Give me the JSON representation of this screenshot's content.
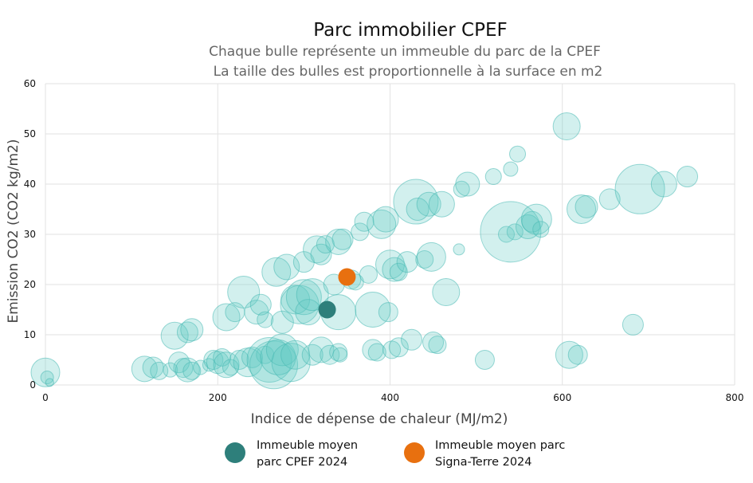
{
  "chart_data": {
    "type": "scatter",
    "title": "Parc immobilier CPEF",
    "subtitle": [
      "Chaque bulle représente un immeuble du parc de la CPEF",
      "La taille des bulles est proportionnelle à la surface en m2"
    ],
    "xlabel": "Indice de dépense de chaleur (MJ/m2)",
    "ylabel": "Emission CO2 (CO2 kg/m2)",
    "xlim": [
      0,
      800
    ],
    "ylim": [
      0,
      60
    ],
    "xticks": [
      0,
      200,
      400,
      600,
      800
    ],
    "yticks": [
      0,
      10,
      20,
      30,
      40,
      50,
      60
    ],
    "grid": true,
    "legend_position": "bottom",
    "colors": {
      "bubble_fill": "#5cc8c3",
      "bubble_stroke": "#47b8b2",
      "cpef_average": "#2e7f7b",
      "signa_terre_average": "#e8700f",
      "grid": "#e2e2e2"
    },
    "series": [
      {
        "role": "bubbles",
        "points": [
          [
            0,
            2.5,
            18
          ],
          [
            2,
            1.5,
            8
          ],
          [
            5,
            0.5,
            5
          ],
          [
            115,
            3.2,
            16
          ],
          [
            125,
            3.5,
            13
          ],
          [
            132,
            2.8,
            11
          ],
          [
            145,
            3.0,
            9
          ],
          [
            150,
            9.8,
            17
          ],
          [
            155,
            4.5,
            13
          ],
          [
            160,
            3.4,
            12
          ],
          [
            165,
            3.0,
            15
          ],
          [
            165,
            10.5,
            13
          ],
          [
            170,
            11.0,
            14
          ],
          [
            170,
            2.8,
            11
          ],
          [
            180,
            3.5,
            9
          ],
          [
            190,
            4.0,
            8
          ],
          [
            195,
            5.0,
            12
          ],
          [
            200,
            4.5,
            14
          ],
          [
            205,
            5.5,
            11
          ],
          [
            210,
            4.0,
            16
          ],
          [
            215,
            3.5,
            10
          ],
          [
            210,
            13.5,
            17
          ],
          [
            220,
            14.5,
            12
          ],
          [
            225,
            5.0,
            12
          ],
          [
            230,
            18.5,
            20
          ],
          [
            235,
            4.5,
            18
          ],
          [
            240,
            5.5,
            13
          ],
          [
            245,
            14.5,
            15
          ],
          [
            250,
            16.0,
            13
          ],
          [
            255,
            13.0,
            10
          ],
          [
            255,
            6.0,
            11
          ],
          [
            260,
            5.0,
            28
          ],
          [
            265,
            4.0,
            30
          ],
          [
            270,
            5.5,
            22
          ],
          [
            275,
            7.0,
            20
          ],
          [
            268,
            22.5,
            18
          ],
          [
            275,
            12.5,
            14
          ],
          [
            280,
            23.5,
            16
          ],
          [
            285,
            4.5,
            24
          ],
          [
            290,
            6.0,
            18
          ],
          [
            290,
            17.0,
            18
          ],
          [
            295,
            16.0,
            24
          ],
          [
            300,
            17.5,
            22
          ],
          [
            305,
            14.5,
            16
          ],
          [
            310,
            18.0,
            20
          ],
          [
            300,
            24.5,
            13
          ],
          [
            315,
            27.0,
            17
          ],
          [
            320,
            26.0,
            13
          ],
          [
            325,
            28.0,
            11
          ],
          [
            310,
            6.0,
            13
          ],
          [
            320,
            7.0,
            16
          ],
          [
            330,
            6.0,
            12
          ],
          [
            340,
            6.5,
            11
          ],
          [
            342,
            6.0,
            9
          ],
          [
            335,
            20.0,
            13
          ],
          [
            340,
            14.5,
            22
          ],
          [
            340,
            28.5,
            16
          ],
          [
            345,
            29.0,
            13
          ],
          [
            355,
            21.0,
            12
          ],
          [
            360,
            20.5,
            10
          ],
          [
            365,
            30.5,
            11
          ],
          [
            370,
            32.5,
            12
          ],
          [
            375,
            22.0,
            11
          ],
          [
            380,
            7.0,
            13
          ],
          [
            385,
            6.5,
            11
          ],
          [
            380,
            15.0,
            22
          ],
          [
            390,
            32.0,
            18
          ],
          [
            395,
            33.0,
            16
          ],
          [
            398,
            14.5,
            12
          ],
          [
            400,
            24.0,
            18
          ],
          [
            405,
            23.0,
            15
          ],
          [
            410,
            22.5,
            11
          ],
          [
            402,
            7.0,
            11
          ],
          [
            410,
            7.5,
            12
          ],
          [
            420,
            24.5,
            13
          ],
          [
            425,
            9.0,
            13
          ],
          [
            430,
            36.5,
            28
          ],
          [
            432,
            35.0,
            14
          ],
          [
            440,
            25.0,
            11
          ],
          [
            445,
            36.0,
            15
          ],
          [
            448,
            25.5,
            18
          ],
          [
            450,
            8.5,
            13
          ],
          [
            455,
            8.0,
            11
          ],
          [
            460,
            36.0,
            16
          ],
          [
            465,
            18.5,
            17
          ],
          [
            480,
            27.0,
            7
          ],
          [
            483,
            39.0,
            10
          ],
          [
            490,
            40.0,
            15
          ],
          [
            510,
            5.0,
            12
          ],
          [
            520,
            41.5,
            10
          ],
          [
            535,
            30.0,
            10
          ],
          [
            540,
            43.0,
            9
          ],
          [
            545,
            30.5,
            10
          ],
          [
            540,
            30.5,
            38
          ],
          [
            548,
            46.0,
            10
          ],
          [
            560,
            31.5,
            15
          ],
          [
            565,
            32.5,
            13
          ],
          [
            570,
            33.0,
            19
          ],
          [
            575,
            31.0,
            10
          ],
          [
            605,
            51.5,
            17
          ],
          [
            608,
            6.0,
            17
          ],
          [
            618,
            6.0,
            12
          ],
          [
            622,
            35.0,
            18
          ],
          [
            628,
            35.5,
            14
          ],
          [
            655,
            37.0,
            13
          ],
          [
            682,
            12.0,
            13
          ],
          [
            690,
            39.0,
            31
          ],
          [
            718,
            40.0,
            16
          ],
          [
            745,
            41.5,
            13
          ]
        ]
      },
      {
        "name": "Immeuble moyen\nparc CPEF 2024",
        "x": 327,
        "y": 15,
        "marker": "cpef_average"
      },
      {
        "name": "Immeuble moyen parc\nSigna-Terre 2024",
        "x": 350,
        "y": 21.5,
        "marker": "signa_terre_average"
      }
    ]
  }
}
